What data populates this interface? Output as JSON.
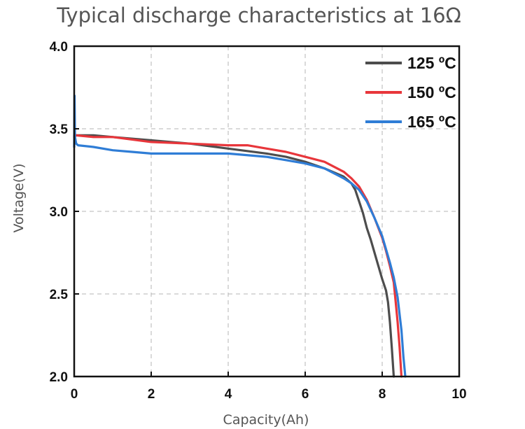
{
  "chart_data": {
    "type": "line",
    "title": "Typical discharge characteristics at 16Ω",
    "xlabel": "Capacity(Ah)",
    "ylabel": "Voltage(V)",
    "xlim": [
      0,
      10
    ],
    "ylim": [
      2.0,
      4.0
    ],
    "x_ticks": [
      0,
      2,
      4,
      6,
      8,
      10
    ],
    "x_tick_labels": [
      "0",
      "2",
      "4",
      "6",
      "8",
      "10"
    ],
    "y_ticks": [
      2.0,
      2.5,
      3.0,
      3.5,
      4.0
    ],
    "y_tick_labels": [
      "2.0",
      "2.5",
      "3.0",
      "3.5",
      "4.0"
    ],
    "grid": true,
    "legend_position": "top-right",
    "series": [
      {
        "name": "125 ºC",
        "color": "#4d4d4d",
        "x": [
          0,
          0.05,
          0.5,
          1,
          2,
          3,
          4,
          5,
          5.5,
          6,
          6.5,
          7,
          7.2,
          7.3,
          7.4,
          7.5,
          7.6,
          7.7,
          7.8,
          7.9,
          8.0,
          8.1,
          8.15,
          8.2,
          8.25,
          8.3
        ],
        "y": [
          3.45,
          3.46,
          3.46,
          3.45,
          3.43,
          3.41,
          3.38,
          3.35,
          3.33,
          3.3,
          3.26,
          3.21,
          3.17,
          3.13,
          3.06,
          2.99,
          2.9,
          2.83,
          2.75,
          2.67,
          2.59,
          2.52,
          2.45,
          2.33,
          2.17,
          2.0
        ]
      },
      {
        "name": "150 ºC",
        "color": "#e8363b",
        "x": [
          0,
          0.05,
          0.5,
          1,
          2,
          3,
          4,
          4.5,
          5,
          5.5,
          6,
          6.5,
          7,
          7.2,
          7.4,
          7.6,
          7.8,
          8.0,
          8.1,
          8.2,
          8.3,
          8.35,
          8.4,
          8.45,
          8.5
        ],
        "y": [
          3.46,
          3.46,
          3.45,
          3.45,
          3.42,
          3.41,
          3.4,
          3.4,
          3.38,
          3.36,
          3.33,
          3.3,
          3.24,
          3.2,
          3.15,
          3.07,
          2.96,
          2.84,
          2.76,
          2.67,
          2.57,
          2.45,
          2.33,
          2.18,
          2.0
        ]
      },
      {
        "name": "165 ºC",
        "color": "#2f7dd6",
        "x": [
          0,
          0.01,
          0.02,
          0.05,
          0.1,
          0.5,
          1,
          1.5,
          2,
          3,
          4,
          5,
          5.5,
          6,
          6.5,
          7,
          7.2,
          7.4,
          7.6,
          7.8,
          8.0,
          8.1,
          8.2,
          8.3,
          8.4,
          8.5,
          8.55,
          8.6
        ],
        "y": [
          3.39,
          3.7,
          3.45,
          3.41,
          3.4,
          3.39,
          3.37,
          3.36,
          3.35,
          3.35,
          3.35,
          3.33,
          3.31,
          3.29,
          3.26,
          3.2,
          3.17,
          3.13,
          3.06,
          2.96,
          2.85,
          2.77,
          2.69,
          2.6,
          2.48,
          2.28,
          2.12,
          2.0
        ]
      }
    ]
  }
}
